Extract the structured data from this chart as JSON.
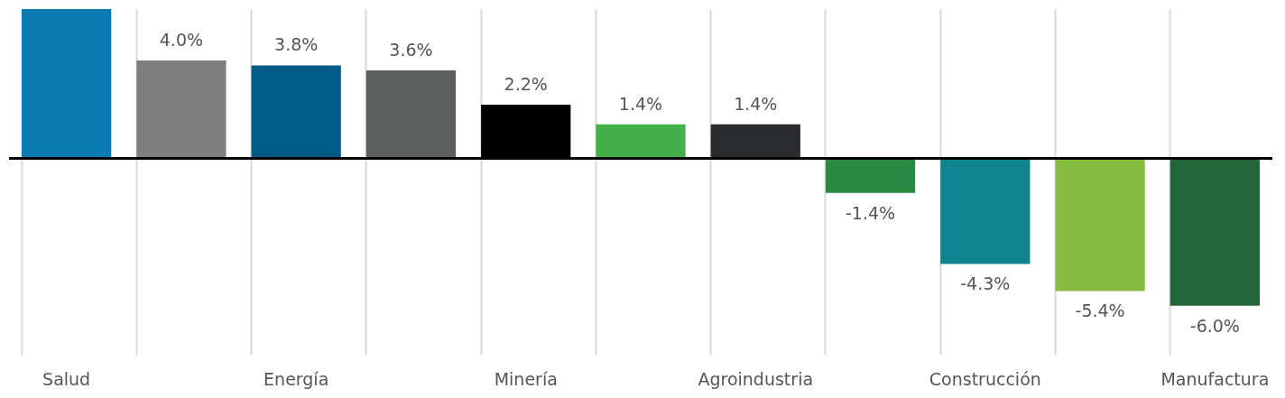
{
  "chart_data": {
    "type": "bar",
    "categories": [
      "Salud",
      null,
      "Energía",
      null,
      "Minería",
      null,
      "Agroindustria",
      null,
      "Construcción",
      null,
      "Manufactura"
    ],
    "values": [
      6.1,
      4.0,
      3.8,
      3.6,
      2.2,
      1.4,
      1.4,
      -1.4,
      -4.3,
      -5.4,
      -6.0
    ],
    "colors": [
      "#0a7bb0",
      "#7f7f7f",
      "#005b87",
      "#5d5f5e",
      "#000000",
      "#44b04a",
      "#2a2b2d",
      "#2a8a43",
      "#0f8490",
      "#86bc40",
      "#22663a"
    ],
    "value_labels": [
      null,
      "4.0%",
      "3.8%",
      "3.6%",
      "2.2%",
      "1.4%",
      "1.4%",
      "-1.4%",
      "-4.3%",
      "-5.4%",
      "-6.0%"
    ],
    "ylim": [
      -8,
      6.1
    ],
    "grid": "x",
    "tick_labels": "x"
  }
}
